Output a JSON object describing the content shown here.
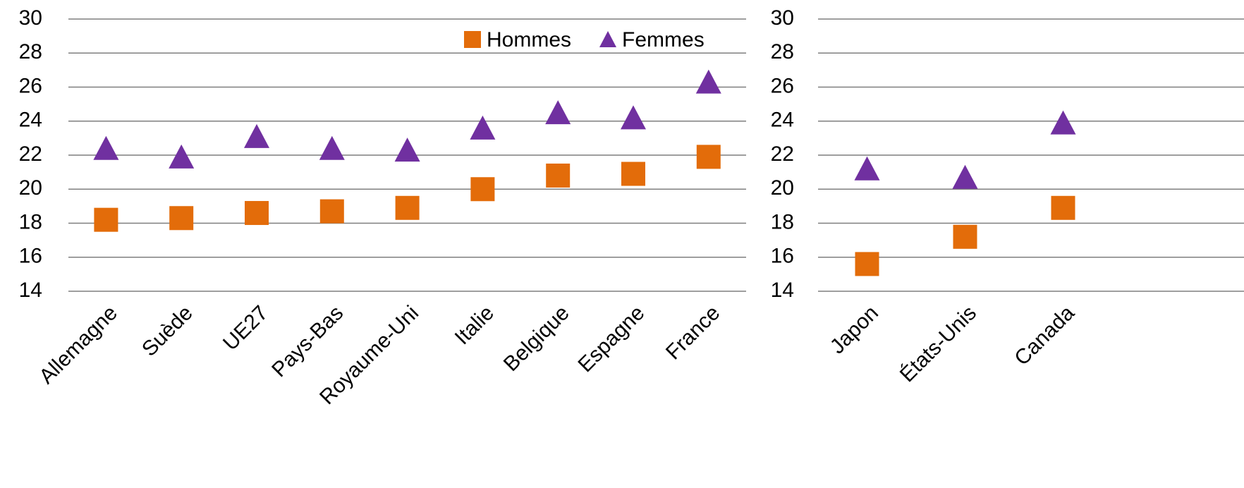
{
  "chart_data": [
    {
      "type": "scatter",
      "categories": [
        "Allemagne",
        "Suède",
        "UE27",
        "Pays-Bas",
        "Royaume-Uni",
        "Italie",
        "Belgique",
        "Espagne",
        "France"
      ],
      "series": [
        {
          "name": "Hommes",
          "color": "#e36c0a",
          "marker": "square",
          "values": [
            18.2,
            18.3,
            18.6,
            18.7,
            18.9,
            20.0,
            20.8,
            20.9,
            21.9
          ]
        },
        {
          "name": "Femmes",
          "color": "#7030a0",
          "marker": "triangle",
          "values": [
            22.3,
            21.8,
            23.0,
            22.3,
            22.2,
            23.5,
            24.4,
            24.1,
            26.2
          ]
        }
      ],
      "ylim": [
        14,
        30
      ],
      "yticks": [
        14,
        16,
        18,
        20,
        22,
        24,
        26,
        28,
        30
      ],
      "grid": true,
      "legend": "top right"
    },
    {
      "type": "scatter",
      "categories": [
        "Japon",
        "États-Unis",
        "Canada"
      ],
      "series": [
        {
          "color": "#e36c0a",
          "marker": "square",
          "values": [
            15.6,
            17.2,
            18.9
          ]
        },
        {
          "color": "#7030a0",
          "marker": "triangle",
          "values": [
            21.1,
            20.6,
            23.8
          ]
        }
      ],
      "ylim": [
        14,
        30
      ],
      "yticks": [
        14,
        16,
        18,
        20,
        22,
        24,
        26,
        28,
        30
      ],
      "grid": true
    }
  ]
}
